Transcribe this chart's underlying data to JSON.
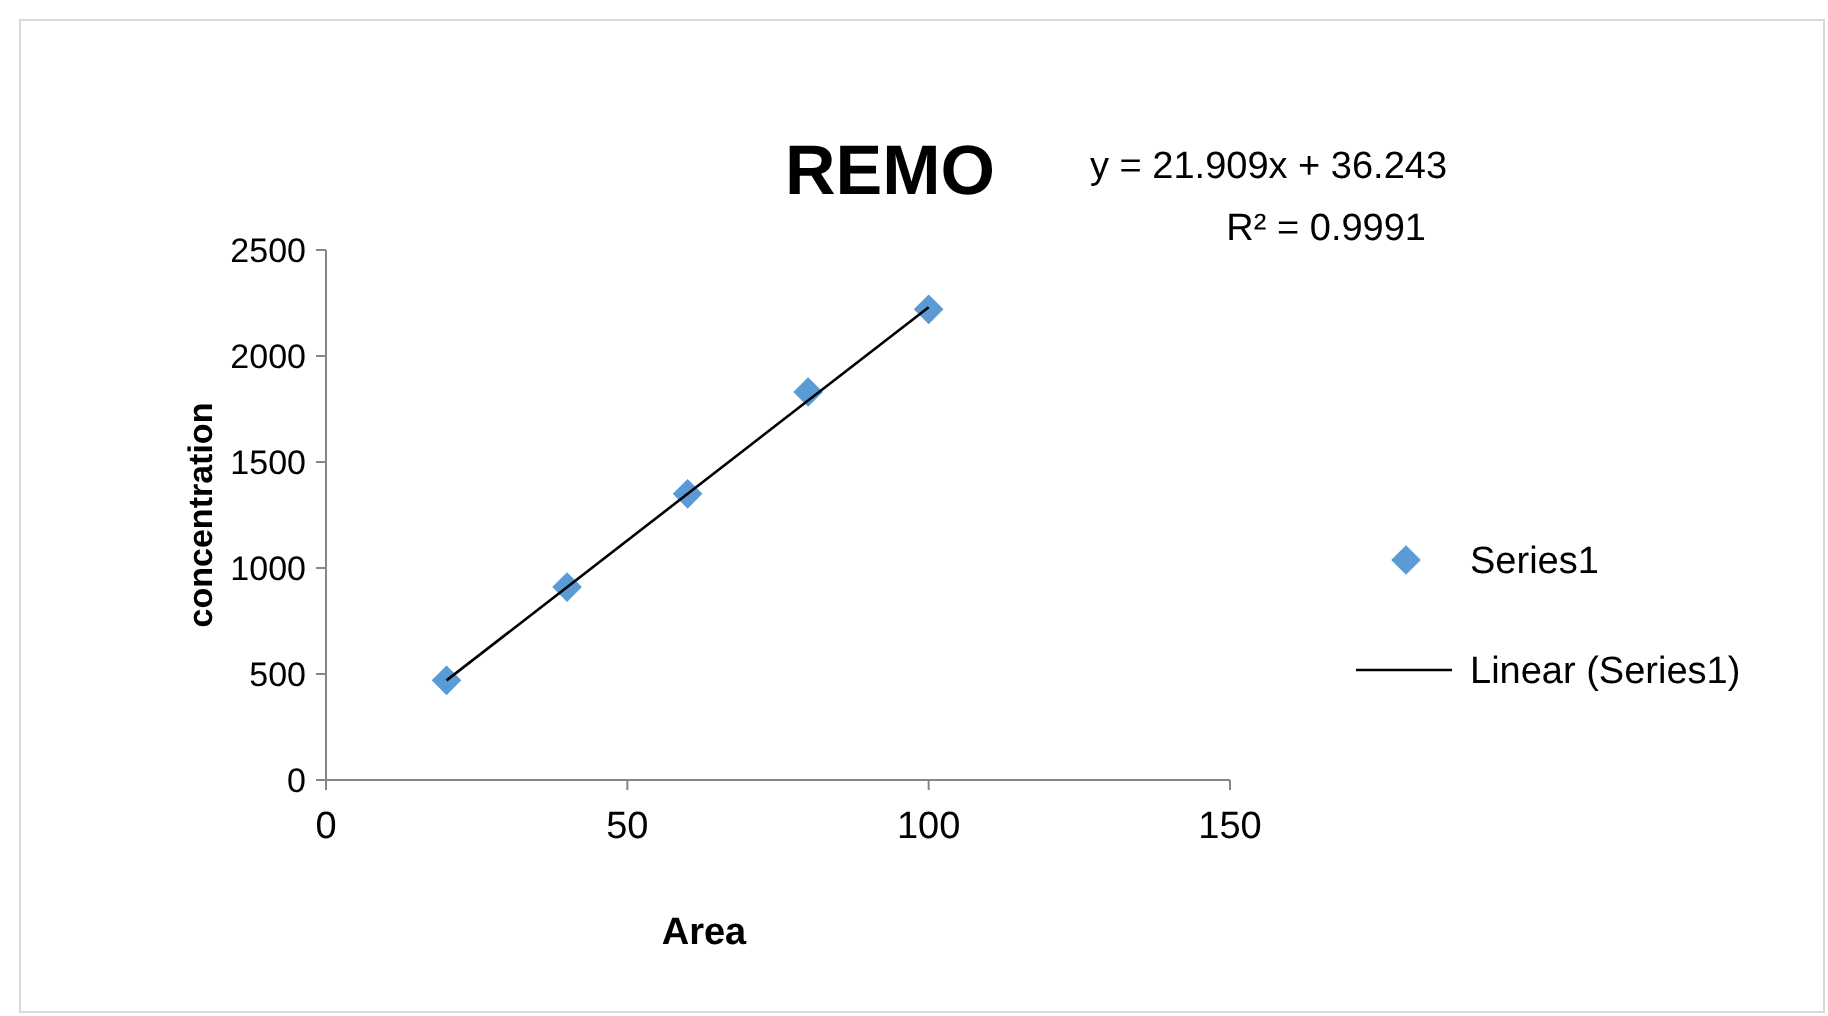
{
  "chart_data": {
    "type": "scatter",
    "title": "REMO",
    "xlabel": "Area",
    "ylabel": "concentration",
    "annotations": [
      "y = 21.909x + 36.243",
      "R² = 0.9991"
    ],
    "xlim": [
      0,
      150
    ],
    "xticks": [
      0,
      50,
      100,
      150
    ],
    "ylim": [
      0,
      2500
    ],
    "yticks": [
      0,
      500,
      1000,
      1500,
      2000,
      2500
    ],
    "grid": false,
    "legend": "right",
    "series": [
      {
        "name": "Series1",
        "color": "#5b9bd5",
        "marker": "diamond",
        "x": [
          20,
          40,
          60,
          80,
          100
        ],
        "values": [
          470,
          910,
          1350,
          1830,
          2220
        ]
      },
      {
        "name": "Linear (Series1)",
        "type": "line",
        "color": "#000000",
        "marker": "none",
        "line_style": "solid",
        "x": [
          20,
          100
        ],
        "values": [
          470,
          2230
        ]
      }
    ]
  }
}
